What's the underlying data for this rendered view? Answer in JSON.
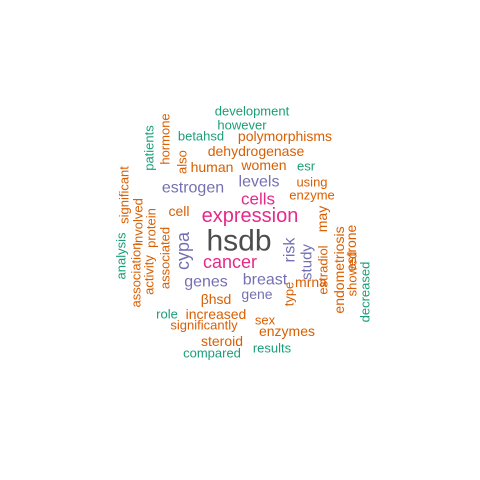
{
  "colors": {
    "gray": "#4d4d4d",
    "magenta": "#e7298a",
    "purple": "#7570b3",
    "orange": "#d95f02",
    "green": "#1b9e77"
  },
  "words": [
    {
      "text": "hsdb",
      "color": "gray"
    },
    {
      "text": "expression",
      "color": "magenta"
    },
    {
      "text": "cancer",
      "color": "magenta"
    },
    {
      "text": "cells",
      "color": "magenta"
    },
    {
      "text": "estrogen",
      "color": "purple"
    },
    {
      "text": "levels",
      "color": "purple"
    },
    {
      "text": "genes",
      "color": "purple"
    },
    {
      "text": "breast",
      "color": "purple"
    },
    {
      "text": "gene",
      "color": "purple"
    },
    {
      "text": "cypa",
      "color": "purple"
    },
    {
      "text": "risk",
      "color": "purple"
    },
    {
      "text": "study",
      "color": "purple"
    },
    {
      "text": "development",
      "color": "green"
    },
    {
      "text": "however",
      "color": "green"
    },
    {
      "text": "betahsd",
      "color": "green"
    },
    {
      "text": "patients",
      "color": "green"
    },
    {
      "text": "esr",
      "color": "green"
    },
    {
      "text": "analysis",
      "color": "green"
    },
    {
      "text": "role",
      "color": "green"
    },
    {
      "text": "compared",
      "color": "green"
    },
    {
      "text": "results",
      "color": "green"
    },
    {
      "text": "decreased",
      "color": "green"
    },
    {
      "text": "polymorphisms",
      "color": "orange"
    },
    {
      "text": "dehydrogenase",
      "color": "orange"
    },
    {
      "text": "hormone",
      "color": "orange"
    },
    {
      "text": "human",
      "color": "orange"
    },
    {
      "text": "women",
      "color": "orange"
    },
    {
      "text": "also",
      "color": "orange"
    },
    {
      "text": "using",
      "color": "orange"
    },
    {
      "text": "enzyme",
      "color": "orange"
    },
    {
      "text": "significant",
      "color": "orange"
    },
    {
      "text": "involved",
      "color": "orange"
    },
    {
      "text": "protein",
      "color": "orange"
    },
    {
      "text": "cell",
      "color": "orange"
    },
    {
      "text": "association",
      "color": "orange"
    },
    {
      "text": "activity",
      "color": "orange"
    },
    {
      "text": "associated",
      "color": "orange"
    },
    {
      "text": "may",
      "color": "orange"
    },
    {
      "text": "mrna",
      "color": "orange"
    },
    {
      "text": "type",
      "color": "orange"
    },
    {
      "text": "estradiol",
      "color": "orange"
    },
    {
      "text": "endometriosis",
      "color": "orange"
    },
    {
      "text": "showed",
      "color": "orange"
    },
    {
      "text": "estrone",
      "color": "orange"
    },
    {
      "text": "βhsd",
      "color": "orange"
    },
    {
      "text": "increased",
      "color": "orange"
    },
    {
      "text": "sex",
      "color": "orange"
    },
    {
      "text": "significantly",
      "color": "orange"
    },
    {
      "text": "enzymes",
      "color": "orange"
    },
    {
      "text": "steroid",
      "color": "orange"
    }
  ]
}
